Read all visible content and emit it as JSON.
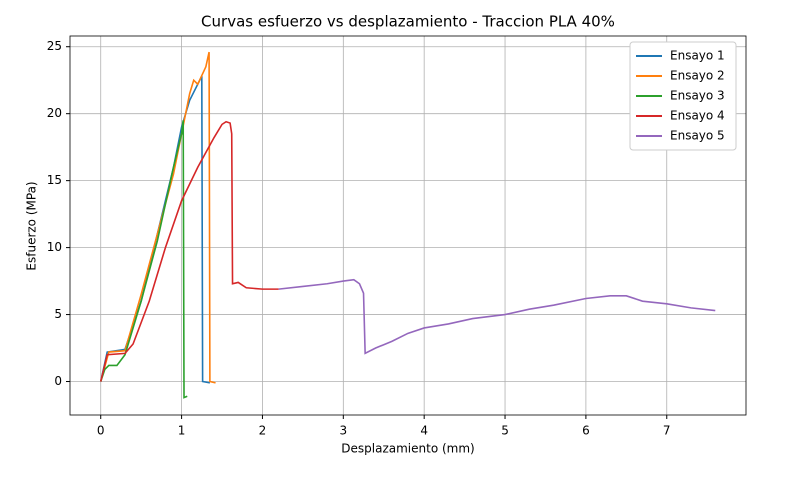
{
  "chart_data": {
    "type": "line",
    "title": "Curvas esfuerzo vs desplazamiento - Traccion PLA 40%",
    "xlabel": "Desplazamiento (mm)",
    "ylabel": "Esfuerzo (MPa)",
    "xlim": [
      -0.38,
      7.98
    ],
    "ylim": [
      -2.5,
      25.8
    ],
    "xticks": [
      0,
      1,
      2,
      3,
      4,
      5,
      6,
      7
    ],
    "yticks": [
      0,
      5,
      10,
      15,
      20,
      25
    ],
    "grid": true,
    "legend": "upper right",
    "series": [
      {
        "name": "Ensayo 1",
        "color": "#1f77b4",
        "x": [
          0,
          0.08,
          0.3,
          0.5,
          0.7,
          0.9,
          1.0,
          1.1,
          1.25,
          1.26,
          1.35
        ],
        "values": [
          0,
          2.2,
          2.4,
          6,
          11,
          16,
          19,
          21,
          22.8,
          0,
          -0.1
        ]
      },
      {
        "name": "Ensayo 2",
        "color": "#ff7f0e",
        "x": [
          0,
          0.1,
          0.3,
          0.5,
          0.7,
          0.9,
          1.0,
          1.1,
          1.15,
          1.2,
          1.3,
          1.34,
          1.35,
          1.42
        ],
        "values": [
          0,
          2.2,
          2.3,
          6.5,
          11,
          15.5,
          18.5,
          21.5,
          22.5,
          22.2,
          23.5,
          24.6,
          0,
          -0.1
        ]
      },
      {
        "name": "Ensayo 3",
        "color": "#2ca02c",
        "x": [
          0,
          0.05,
          0.1,
          0.2,
          0.3,
          0.5,
          0.7,
          0.9,
          1.0,
          1.02,
          1.03,
          1.07
        ],
        "values": [
          0,
          0.9,
          1.2,
          1.2,
          2,
          6,
          10.5,
          16,
          18.5,
          19.5,
          -1.2,
          -1.1
        ]
      },
      {
        "name": "Ensayo 4",
        "color": "#d62728",
        "x": [
          0,
          0.08,
          0.3,
          0.4,
          0.6,
          0.8,
          1.0,
          1.2,
          1.4,
          1.5,
          1.55,
          1.6,
          1.62,
          1.63,
          1.7,
          1.8,
          2.0,
          2.2
        ],
        "values": [
          0,
          2,
          2.1,
          2.8,
          6,
          10,
          13.5,
          16,
          18.2,
          19.2,
          19.4,
          19.3,
          18.5,
          7.3,
          7.4,
          7.0,
          6.9,
          6.9
        ]
      },
      {
        "name": "Ensayo 5",
        "color": "#9467bd",
        "x": [
          2.2,
          2.5,
          2.8,
          3.0,
          3.13,
          3.2,
          3.25,
          3.27,
          3.4,
          3.6,
          3.8,
          4.0,
          4.3,
          4.6,
          5.0,
          5.3,
          5.6,
          6.0,
          6.3,
          6.5,
          6.7,
          7.0,
          7.3,
          7.6
        ],
        "values": [
          6.9,
          7.1,
          7.3,
          7.5,
          7.6,
          7.3,
          6.6,
          2.1,
          2.5,
          3.0,
          3.6,
          4.0,
          4.3,
          4.7,
          5.0,
          5.4,
          5.7,
          6.2,
          6.4,
          6.4,
          6.0,
          5.8,
          5.5,
          5.3
        ]
      }
    ]
  }
}
